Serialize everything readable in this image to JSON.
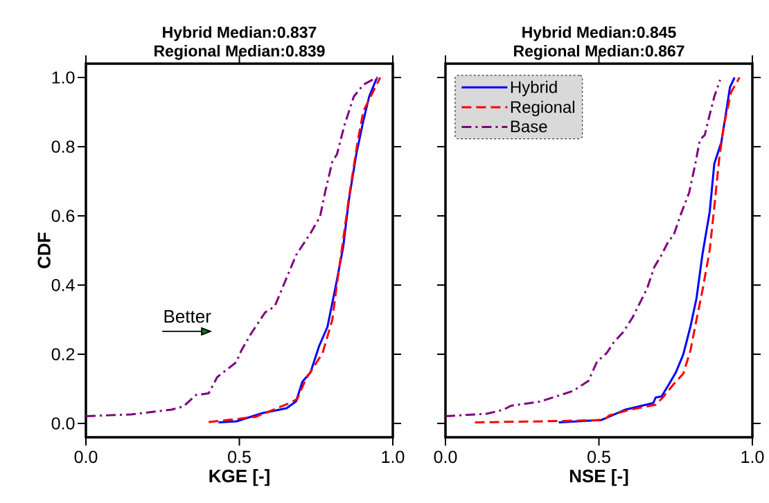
{
  "chart_data": [
    {
      "type": "line",
      "title": "Hybrid Median:0.837",
      "subtitle": "Regional Median:0.839",
      "xlabel": "KGE [-]",
      "ylabel": "CDF",
      "annotations": [
        "Better"
      ],
      "marker": "none",
      "xlim": [
        0,
        1
      ],
      "ylim": [
        -0.04,
        1.04
      ],
      "xticks": [
        {
          "value": 0,
          "label": "0.0"
        },
        {
          "value": 0.5,
          "label": "0.5"
        },
        {
          "value": 1,
          "label": "1.0"
        }
      ],
      "yticks": [
        {
          "value": 0,
          "label": "0.0"
        },
        {
          "value": 0.2,
          "label": "0.2"
        },
        {
          "value": 0.4,
          "label": "0.4"
        },
        {
          "value": 0.6,
          "label": "0.6"
        },
        {
          "value": 0.8,
          "label": "0.8"
        },
        {
          "value": 1,
          "label": "1.0"
        }
      ],
      "series": [
        {
          "color": "#0000ff",
          "line_style": "solid",
          "x": [
            0.432,
            0.49,
            0.576,
            0.654,
            0.685,
            0.705,
            0.732,
            0.76,
            0.787,
            0.814,
            0.838,
            0.857,
            0.881,
            0.904,
            0.923,
            0.947
          ],
          "values": [
            0.003,
            0.006,
            0.03,
            0.044,
            0.064,
            0.12,
            0.148,
            0.224,
            0.279,
            0.397,
            0.508,
            0.647,
            0.778,
            0.875,
            0.945,
            0.997
          ]
        },
        {
          "color": "#ff0000",
          "line_style": "dashed",
          "x": [
            0.4,
            0.553,
            0.662,
            0.689,
            0.716,
            0.771,
            0.803,
            0.818,
            0.838,
            0.857,
            0.885,
            0.904,
            0.959
          ],
          "values": [
            0.004,
            0.019,
            0.058,
            0.071,
            0.127,
            0.203,
            0.3,
            0.404,
            0.529,
            0.653,
            0.813,
            0.903,
            1.0
          ]
        },
        {
          "color": "#800080",
          "line_style": "dashdot",
          "x": [
            0,
            0.147,
            0.28,
            0.318,
            0.358,
            0.4,
            0.428,
            0.49,
            0.506,
            0.537,
            0.584,
            0.615,
            0.646,
            0.685,
            0.732,
            0.763,
            0.779,
            0.803,
            0.818,
            0.842,
            0.873,
            0.904,
            0.935,
            0.951
          ],
          "values": [
            0.021,
            0.026,
            0.04,
            0.049,
            0.082,
            0.087,
            0.134,
            0.177,
            0.21,
            0.258,
            0.321,
            0.338,
            0.404,
            0.487,
            0.55,
            0.598,
            0.667,
            0.757,
            0.778,
            0.861,
            0.945,
            0.979,
            0.994,
            1.0
          ]
        }
      ]
    },
    {
      "type": "line",
      "title": "Hybrid Median:0.845",
      "subtitle": "Regional Median:0.867",
      "xlabel": "NSE [-]",
      "marker": "none",
      "legend": "top left",
      "tick_labels": "x",
      "xlim": [
        0,
        1
      ],
      "ylim": [
        -0.04,
        1.04
      ],
      "xticks": [
        {
          "value": 0,
          "label": "0.0"
        },
        {
          "value": 0.5,
          "label": "0.5"
        },
        {
          "value": 1,
          "label": "1.0"
        }
      ],
      "yticks": [
        {
          "value": 0,
          "label": null
        },
        {
          "value": 0.2,
          "label": null
        },
        {
          "value": 0.4,
          "label": null
        },
        {
          "value": 0.6,
          "label": null
        },
        {
          "value": 0.8,
          "label": null
        },
        {
          "value": 1,
          "label": null
        }
      ],
      "series": [
        {
          "name": "Hybrid",
          "color": "#0000ff",
          "line_style": "solid",
          "x": [
            0.369,
            0.509,
            0.587,
            0.677,
            0.685,
            0.704,
            0.728,
            0.751,
            0.775,
            0.798,
            0.818,
            0.837,
            0.861,
            0.876,
            0.899,
            0.915,
            0.927,
            0.942
          ],
          "values": [
            0.003,
            0.01,
            0.04,
            0.059,
            0.075,
            0.078,
            0.113,
            0.148,
            0.2,
            0.279,
            0.362,
            0.487,
            0.612,
            0.751,
            0.813,
            0.903,
            0.972,
            1.0
          ]
        },
        {
          "name": "Regional",
          "color": "#ff0000",
          "line_style": "dashed",
          "x": [
            0.096,
            0.377,
            0.517,
            0.533,
            0.603,
            0.685,
            0.708,
            0.743,
            0.775,
            0.798,
            0.818,
            0.837,
            0.861,
            0.876,
            0.892,
            0.907,
            0.931,
            0.958
          ],
          "values": [
            0.003,
            0.007,
            0.01,
            0.023,
            0.04,
            0.054,
            0.075,
            0.113,
            0.144,
            0.21,
            0.3,
            0.383,
            0.501,
            0.626,
            0.765,
            0.861,
            0.958,
            1.0
          ]
        },
        {
          "name": "Base",
          "color": "#800080",
          "line_style": "dashdot",
          "x": [
            0,
            0.135,
            0.19,
            0.213,
            0.307,
            0.385,
            0.416,
            0.466,
            0.494,
            0.525,
            0.548,
            0.58,
            0.61,
            0.626,
            0.657,
            0.681,
            0.704,
            0.728,
            0.743,
            0.767,
            0.794,
            0.814,
            0.829,
            0.845,
            0.86,
            0.876,
            0.895
          ],
          "values": [
            0.021,
            0.028,
            0.04,
            0.051,
            0.063,
            0.085,
            0.094,
            0.123,
            0.179,
            0.203,
            0.234,
            0.265,
            0.307,
            0.335,
            0.39,
            0.453,
            0.487,
            0.529,
            0.543,
            0.605,
            0.667,
            0.75,
            0.82,
            0.834,
            0.889,
            0.945,
            0.993
          ]
        }
      ]
    }
  ]
}
